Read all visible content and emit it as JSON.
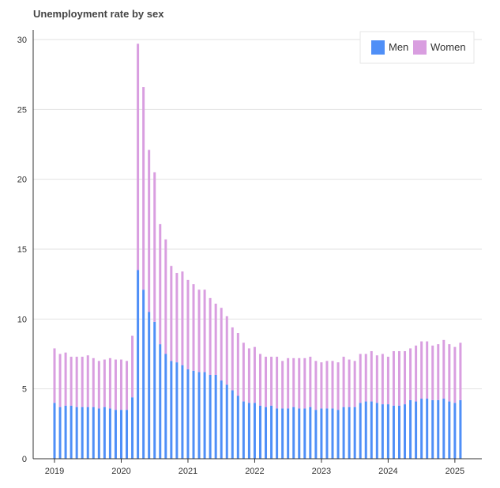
{
  "chart_data": {
    "type": "bar",
    "stacked": true,
    "title": "Unemployment rate by sex",
    "xlabel": "",
    "ylabel": "",
    "ylim": [
      0,
      32
    ],
    "y_ticks": [
      0,
      5,
      10,
      15,
      20,
      25,
      30
    ],
    "x_ticks": [
      "2019",
      "2020",
      "2021",
      "2022",
      "2023",
      "2024",
      "2025"
    ],
    "grid": true,
    "legend_position": "top-right",
    "period_start": "2019-01",
    "period_end": "2025-02",
    "frequency": "monthly",
    "series": [
      {
        "name": "Men",
        "color": "#4f8ff7",
        "values": [
          4.0,
          3.7,
          3.8,
          3.8,
          3.7,
          3.7,
          3.7,
          3.7,
          3.6,
          3.7,
          3.6,
          3.5,
          3.5,
          3.5,
          4.4,
          13.5,
          12.1,
          10.5,
          9.8,
          8.2,
          7.5,
          7.0,
          6.9,
          6.7,
          6.4,
          6.3,
          6.2,
          6.2,
          6.0,
          6.0,
          5.6,
          5.3,
          4.9,
          4.5,
          4.1,
          4.0,
          4.0,
          3.8,
          3.7,
          3.8,
          3.6,
          3.6,
          3.6,
          3.7,
          3.6,
          3.6,
          3.7,
          3.5,
          3.6,
          3.6,
          3.6,
          3.5,
          3.7,
          3.7,
          3.7,
          4.0,
          4.1,
          4.1,
          4.0,
          3.9,
          3.9,
          3.8,
          3.8,
          3.9,
          4.2,
          4.1,
          4.3,
          4.3,
          4.2,
          4.2,
          4.3,
          4.1,
          4.0,
          4.2
        ]
      },
      {
        "name": "Women",
        "color": "#d99ee0",
        "values": [
          3.9,
          3.8,
          3.8,
          3.5,
          3.6,
          3.6,
          3.7,
          3.5,
          3.4,
          3.4,
          3.6,
          3.6,
          3.6,
          3.5,
          4.4,
          16.2,
          14.5,
          11.6,
          10.7,
          8.6,
          8.2,
          6.8,
          6.4,
          6.7,
          6.4,
          6.2,
          5.9,
          5.9,
          5.5,
          5.1,
          5.2,
          4.9,
          4.5,
          4.5,
          4.2,
          3.9,
          4.0,
          3.7,
          3.6,
          3.5,
          3.7,
          3.4,
          3.6,
          3.5,
          3.6,
          3.6,
          3.6,
          3.5,
          3.3,
          3.4,
          3.4,
          3.4,
          3.6,
          3.4,
          3.3,
          3.5,
          3.4,
          3.6,
          3.4,
          3.6,
          3.4,
          3.9,
          3.9,
          3.8,
          3.7,
          4.0,
          4.1,
          4.1,
          3.9,
          4.0,
          4.2,
          4.1,
          4.0,
          4.1
        ]
      }
    ]
  }
}
